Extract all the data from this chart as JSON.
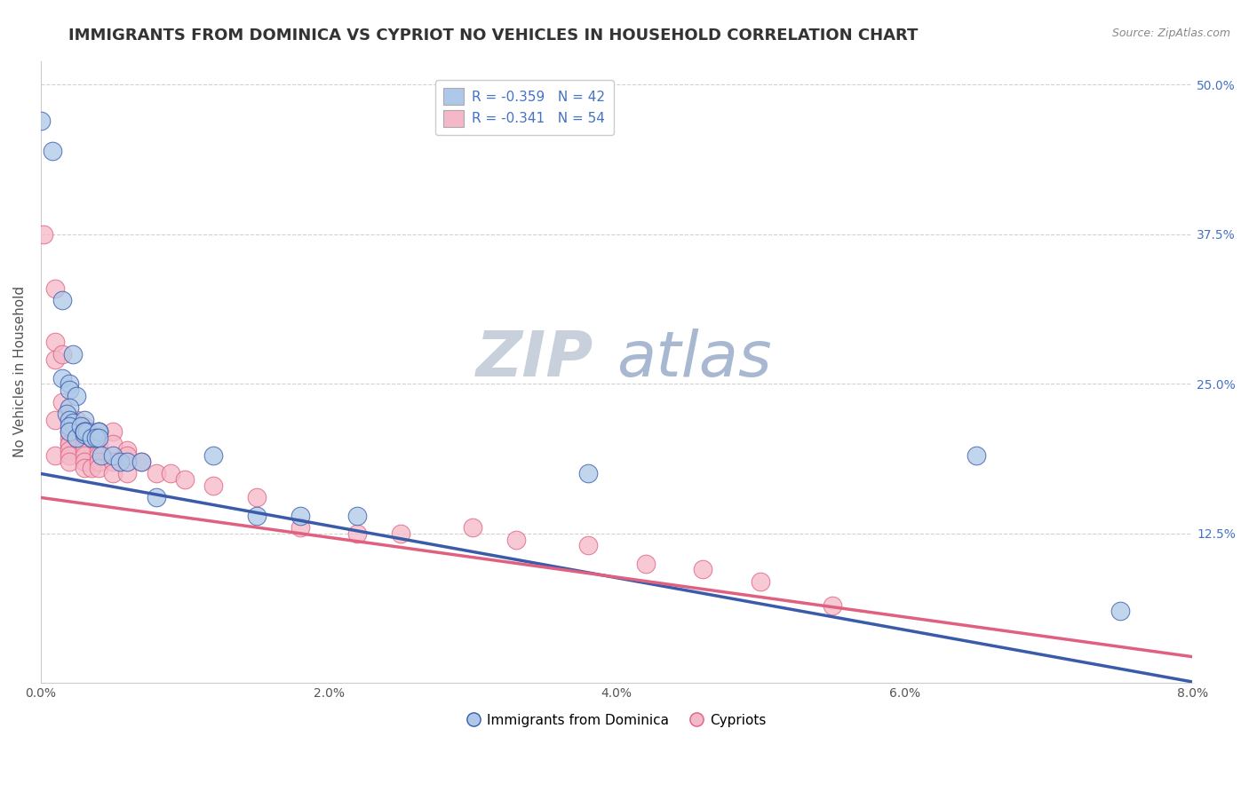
{
  "title": "IMMIGRANTS FROM DOMINICA VS CYPRIOT NO VEHICLES IN HOUSEHOLD CORRELATION CHART",
  "source": "Source: ZipAtlas.com",
  "ylabel": "No Vehicles in Household",
  "xlim": [
    0.0,
    0.08
  ],
  "ylim": [
    0.0,
    0.52
  ],
  "legend_blue_label": "Immigrants from Dominica",
  "legend_pink_label": "Cypriots",
  "blue_color": "#adc8e8",
  "pink_color": "#f4b8c8",
  "blue_line_color": "#3a5aaa",
  "pink_line_color": "#e06080",
  "blue_scatter_x": [
    0.0008,
    0.0,
    0.0015,
    0.0022,
    0.0015,
    0.002,
    0.002,
    0.0025,
    0.002,
    0.0018,
    0.002,
    0.0022,
    0.002,
    0.002,
    0.0025,
    0.003,
    0.0028,
    0.003,
    0.003,
    0.0035,
    0.003,
    0.0032,
    0.003,
    0.0035,
    0.004,
    0.004,
    0.0038,
    0.004,
    0.0042,
    0.005,
    0.0055,
    0.006,
    0.007,
    0.008,
    0.012,
    0.015,
    0.018,
    0.022,
    0.038,
    0.065,
    0.075
  ],
  "blue_scatter_y": [
    0.445,
    0.47,
    0.32,
    0.275,
    0.255,
    0.25,
    0.245,
    0.24,
    0.23,
    0.225,
    0.22,
    0.218,
    0.215,
    0.21,
    0.205,
    0.22,
    0.215,
    0.21,
    0.208,
    0.205,
    0.21,
    0.21,
    0.21,
    0.205,
    0.21,
    0.21,
    0.205,
    0.205,
    0.19,
    0.19,
    0.185,
    0.185,
    0.185,
    0.155,
    0.19,
    0.14,
    0.14,
    0.14,
    0.175,
    0.19,
    0.06
  ],
  "pink_scatter_x": [
    0.0002,
    0.001,
    0.001,
    0.001,
    0.001,
    0.001,
    0.0015,
    0.0015,
    0.002,
    0.002,
    0.002,
    0.002,
    0.002,
    0.002,
    0.002,
    0.0025,
    0.0025,
    0.003,
    0.003,
    0.003,
    0.003,
    0.003,
    0.003,
    0.003,
    0.0035,
    0.004,
    0.004,
    0.004,
    0.004,
    0.004,
    0.004,
    0.005,
    0.005,
    0.005,
    0.005,
    0.006,
    0.006,
    0.006,
    0.007,
    0.008,
    0.009,
    0.01,
    0.012,
    0.015,
    0.018,
    0.022,
    0.025,
    0.03,
    0.033,
    0.038,
    0.042,
    0.046,
    0.05,
    0.055
  ],
  "pink_scatter_y": [
    0.375,
    0.33,
    0.285,
    0.27,
    0.22,
    0.19,
    0.275,
    0.235,
    0.21,
    0.205,
    0.2,
    0.2,
    0.195,
    0.19,
    0.185,
    0.22,
    0.205,
    0.215,
    0.205,
    0.2,
    0.195,
    0.19,
    0.185,
    0.18,
    0.18,
    0.21,
    0.2,
    0.195,
    0.19,
    0.185,
    0.18,
    0.21,
    0.2,
    0.185,
    0.175,
    0.195,
    0.19,
    0.175,
    0.185,
    0.175,
    0.175,
    0.17,
    0.165,
    0.155,
    0.13,
    0.125,
    0.125,
    0.13,
    0.12,
    0.115,
    0.1,
    0.095,
    0.085,
    0.065
  ],
  "blue_trend_x": [
    0.0,
    0.08
  ],
  "blue_trend_y": [
    0.175,
    0.001
  ],
  "pink_trend_x": [
    0.0,
    0.08
  ],
  "pink_trend_y": [
    0.155,
    0.022
  ],
  "background_color": "#ffffff",
  "grid_color": "#cccccc",
  "title_fontsize": 13,
  "axis_label_fontsize": 11,
  "tick_fontsize": 10,
  "watermark_zip_color": "#c8d0dc",
  "watermark_atlas_color": "#a8b8d0",
  "watermark_fontsize": 52
}
